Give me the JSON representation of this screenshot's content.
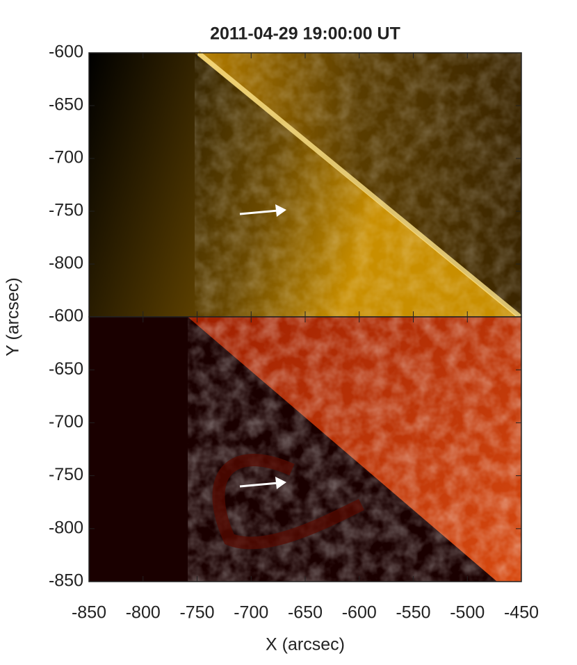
{
  "chart_data": [
    {
      "type": "image",
      "title": "2011-04-29 19:00:00 UT",
      "ylabel": "Y (arcsec)",
      "colormap": "gold",
      "xlim": [
        -850,
        -450
      ],
      "ylim": [
        -850,
        -600
      ],
      "yticks": [
        -600,
        -650,
        -700,
        -750,
        -800
      ]
    },
    {
      "type": "image",
      "xlabel": "X (arcsec)",
      "colormap": "red",
      "xlim": [
        -850,
        -450
      ],
      "ylim": [
        -850,
        -600
      ],
      "yticks": [
        -600,
        -650,
        -700,
        -750,
        -800,
        -850
      ],
      "xticks": [
        -850,
        -800,
        -750,
        -700,
        -650,
        -600,
        -550,
        -500,
        -450
      ]
    }
  ]
}
